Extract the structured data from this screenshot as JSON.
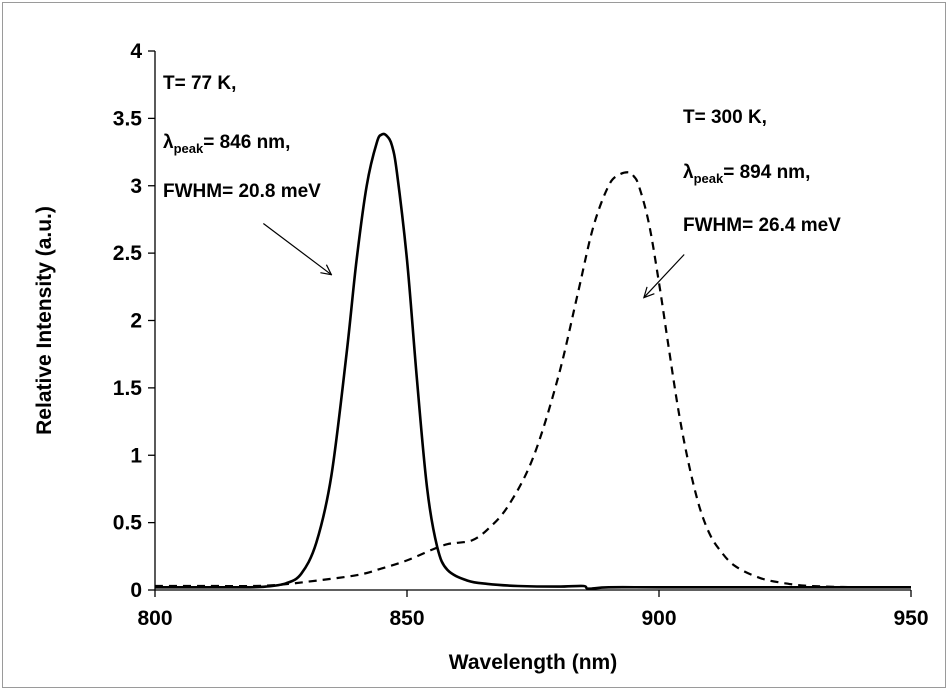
{
  "chart_data": {
    "type": "line",
    "title": "",
    "xlabel": "Wavelength (nm)",
    "ylabel": "Relative Intensity (a.u.)",
    "xlim": [
      800,
      950
    ],
    "ylim": [
      0,
      4
    ],
    "xticks": [
      800,
      850,
      900,
      950
    ],
    "xtick_labels": [
      "800",
      "850",
      "900",
      "950"
    ],
    "yticks": [
      0,
      0.5,
      1,
      1.5,
      2,
      2.5,
      3,
      3.5,
      4
    ],
    "ytick_labels": [
      "0",
      "0.5",
      "1",
      "1.5",
      "2",
      "2.5",
      "3",
      "3.5",
      "4"
    ],
    "grid": false,
    "colors": {
      "line": "#000000",
      "axis": "#000000",
      "frame": "#9a9a9a"
    },
    "series": [
      {
        "style": "solid",
        "x": [
          800,
          810,
          818,
          822,
          826,
          829,
          832,
          835,
          838,
          840,
          842,
          844,
          845,
          846,
          847,
          848,
          850,
          852,
          854,
          856,
          858,
          862,
          866,
          872,
          880,
          885,
          886,
          890,
          900,
          920,
          950
        ],
        "y": [
          0.02,
          0.02,
          0.02,
          0.025,
          0.05,
          0.12,
          0.35,
          0.85,
          1.75,
          2.45,
          3.0,
          3.32,
          3.38,
          3.37,
          3.3,
          3.1,
          2.45,
          1.55,
          0.75,
          0.32,
          0.15,
          0.07,
          0.045,
          0.03,
          0.025,
          0.03,
          0.01,
          0.02,
          0.02,
          0.02,
          0.02
        ]
      },
      {
        "style": "dashed",
        "x": [
          800,
          810,
          820,
          825,
          830,
          840,
          845,
          850,
          855,
          858,
          860,
          863,
          866,
          870,
          875,
          880,
          884,
          887,
          890,
          892,
          894,
          895,
          896,
          898,
          900,
          902,
          904,
          906,
          908,
          910,
          912,
          915,
          920,
          925,
          930,
          940,
          950
        ],
        "y": [
          0.03,
          0.03,
          0.03,
          0.04,
          0.06,
          0.11,
          0.16,
          0.22,
          0.3,
          0.34,
          0.35,
          0.37,
          0.45,
          0.62,
          0.98,
          1.58,
          2.22,
          2.7,
          3.0,
          3.08,
          3.1,
          3.07,
          3.0,
          2.72,
          2.28,
          1.78,
          1.3,
          0.92,
          0.62,
          0.42,
          0.3,
          0.18,
          0.09,
          0.05,
          0.03,
          0.02,
          0.02
        ]
      }
    ],
    "annotations": [
      {
        "lines": [
          "T= 77 K,",
          "λ",
          "peak",
          "= 846 nm,",
          "FWHM= 20.8 meV"
        ],
        "arrow_from": [
          821.5,
          2.72
        ],
        "arrow_to": [
          835,
          2.34
        ]
      },
      {
        "lines": [
          "T= 300 K,",
          "λ",
          "peak",
          "= 894 nm,",
          "FWHM= 26.4 meV"
        ],
        "arrow_from": [
          905,
          2.49
        ],
        "arrow_to": [
          897,
          2.17
        ]
      }
    ]
  }
}
